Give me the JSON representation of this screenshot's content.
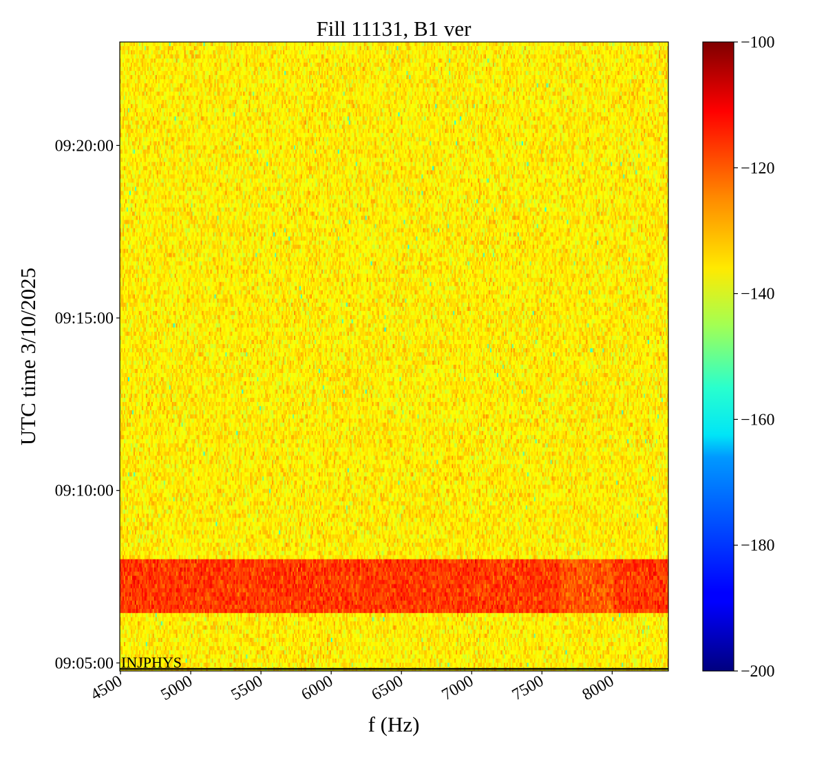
{
  "chart_data": {
    "type": "heatmap",
    "title": "Fill 11131, B1 ver",
    "xlabel": "f (Hz)",
    "ylabel": "UTC time 3/10/2025",
    "xlim": [
      4495,
      8400
    ],
    "ylim": [
      "09:04:46",
      "09:23:00"
    ],
    "xticks": [
      "4500",
      "5000",
      "5500",
      "6000",
      "6500",
      "7000",
      "7500",
      "8000"
    ],
    "xtick_values": [
      4500,
      5000,
      5500,
      6000,
      6500,
      7000,
      7500,
      8000
    ],
    "yticks": [
      "09:05:00",
      "09:10:00",
      "09:15:00",
      "09:20:00"
    ],
    "colorbar": {
      "colormap": "jet",
      "vmin": -200,
      "vmax": -100,
      "ticks": [
        "−100",
        "−120",
        "−140",
        "−160",
        "−180",
        "−200"
      ],
      "tick_values": [
        -100,
        -120,
        -140,
        -160,
        -180,
        -200
      ]
    },
    "background_level": -136,
    "high_band": {
      "time_start": "09:06:30",
      "time_end": "09:08:00",
      "level": -118
    },
    "annotation": {
      "text": "INJPHYS",
      "time": "09:04:46"
    }
  }
}
